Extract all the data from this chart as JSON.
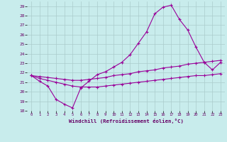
{
  "xlabel": "Windchill (Refroidissement éolien,°C)",
  "bg_color": "#c8ecec",
  "line_color": "#990099",
  "grid_color": "#aacccc",
  "ylim": [
    18,
    29.5
  ],
  "xlim": [
    -0.5,
    23.5
  ],
  "yticks": [
    18,
    19,
    20,
    21,
    22,
    23,
    24,
    25,
    26,
    27,
    28,
    29
  ],
  "xticks": [
    0,
    1,
    2,
    3,
    4,
    5,
    6,
    7,
    8,
    9,
    10,
    11,
    12,
    13,
    14,
    15,
    16,
    17,
    18,
    19,
    20,
    21,
    22,
    23
  ],
  "series1_x": [
    0,
    1,
    2,
    3,
    4,
    5,
    6,
    7,
    8,
    9,
    10,
    11,
    12,
    13,
    14,
    15,
    16,
    17,
    18,
    19,
    20,
    21,
    22,
    23
  ],
  "series1_y": [
    21.7,
    21.1,
    20.6,
    19.2,
    18.7,
    18.3,
    20.4,
    21.1,
    21.8,
    22.1,
    22.6,
    23.1,
    23.9,
    25.1,
    26.3,
    28.2,
    28.9,
    29.1,
    27.6,
    26.5,
    24.7,
    23.1,
    22.3,
    23.1
  ],
  "series2_x": [
    0,
    1,
    2,
    3,
    4,
    5,
    6,
    7,
    8,
    9,
    10,
    11,
    12,
    13,
    14,
    15,
    16,
    17,
    18,
    19,
    20,
    21,
    22,
    23
  ],
  "series2_y": [
    21.7,
    21.6,
    21.5,
    21.4,
    21.3,
    21.2,
    21.2,
    21.3,
    21.4,
    21.5,
    21.7,
    21.8,
    21.9,
    22.1,
    22.2,
    22.3,
    22.5,
    22.6,
    22.7,
    22.9,
    23.0,
    23.1,
    23.2,
    23.3
  ],
  "series3_x": [
    0,
    1,
    2,
    3,
    4,
    5,
    6,
    7,
    8,
    9,
    10,
    11,
    12,
    13,
    14,
    15,
    16,
    17,
    18,
    19,
    20,
    21,
    22,
    23
  ],
  "series3_y": [
    21.7,
    21.4,
    21.2,
    21.0,
    20.8,
    20.6,
    20.5,
    20.5,
    20.5,
    20.6,
    20.7,
    20.8,
    20.9,
    21.0,
    21.1,
    21.2,
    21.3,
    21.4,
    21.5,
    21.6,
    21.7,
    21.7,
    21.8,
    21.9
  ]
}
